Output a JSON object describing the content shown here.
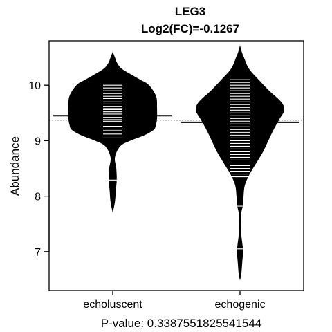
{
  "chart_data": {
    "type": "beanplot",
    "title": "LEG3",
    "subtitle": "Log2(FC)=-0.1267",
    "xlabel": "P-value: 0.3387551825541544",
    "ylabel": "Abundance",
    "categories": [
      "echoluscent",
      "echogenic"
    ],
    "ylim": [
      6.3,
      10.8
    ],
    "yticks": [
      7,
      8,
      9,
      10
    ],
    "overall_mean": 9.37,
    "groups": [
      {
        "name": "echoluscent",
        "mean": 9.45,
        "range": [
          7.7,
          10.6
        ],
        "density": [
          [
            7.7,
            0.0
          ],
          [
            7.9,
            0.05
          ],
          [
            8.1,
            0.07
          ],
          [
            8.3,
            0.09
          ],
          [
            8.5,
            0.08
          ],
          [
            8.7,
            0.05
          ],
          [
            8.9,
            0.17
          ],
          [
            9.0,
            0.4
          ],
          [
            9.1,
            0.72
          ],
          [
            9.2,
            0.93
          ],
          [
            9.3,
            0.98
          ],
          [
            9.4,
            1.0
          ],
          [
            9.6,
            1.0
          ],
          [
            9.8,
            0.98
          ],
          [
            10.0,
            0.82
          ],
          [
            10.1,
            0.62
          ],
          [
            10.2,
            0.4
          ],
          [
            10.3,
            0.2
          ],
          [
            10.4,
            0.1
          ],
          [
            10.5,
            0.05
          ],
          [
            10.6,
            0.0
          ]
        ],
        "observations": [
          8.29,
          9.05,
          9.12,
          9.18,
          9.21,
          9.26,
          9.35,
          9.38,
          9.42,
          9.45,
          9.48,
          9.52,
          9.56,
          9.58,
          9.62,
          9.66,
          9.7,
          9.76,
          9.8,
          9.85,
          9.9,
          9.95,
          10.0
        ]
      },
      {
        "name": "echogenic",
        "mean": 9.33,
        "range": [
          6.48,
          10.72
        ],
        "density": [
          [
            6.48,
            0.0
          ],
          [
            6.6,
            0.03
          ],
          [
            6.8,
            0.05
          ],
          [
            7.0,
            0.07
          ],
          [
            7.1,
            0.06
          ],
          [
            7.3,
            0.03
          ],
          [
            7.5,
            0.02
          ],
          [
            7.7,
            0.03
          ],
          [
            7.85,
            0.07
          ],
          [
            8.0,
            0.08
          ],
          [
            8.2,
            0.11
          ],
          [
            8.4,
            0.22
          ],
          [
            8.6,
            0.37
          ],
          [
            8.8,
            0.52
          ],
          [
            9.0,
            0.64
          ],
          [
            9.2,
            0.76
          ],
          [
            9.4,
            0.9
          ],
          [
            9.55,
            1.0
          ],
          [
            9.7,
            0.93
          ],
          [
            9.9,
            0.66
          ],
          [
            10.1,
            0.42
          ],
          [
            10.3,
            0.2
          ],
          [
            10.5,
            0.09
          ],
          [
            10.6,
            0.04
          ],
          [
            10.72,
            0.0
          ]
        ],
        "observations": [
          7.05,
          7.82,
          8.35,
          8.4,
          8.45,
          8.5,
          8.55,
          8.6,
          8.65,
          8.7,
          8.75,
          8.8,
          8.85,
          8.9,
          8.95,
          9.0,
          9.05,
          9.1,
          9.15,
          9.2,
          9.25,
          9.3,
          9.35,
          9.4,
          9.45,
          9.5,
          9.55,
          9.6,
          9.65,
          9.7,
          9.75,
          9.8,
          9.85,
          9.9,
          9.95,
          10.0,
          10.05,
          10.1
        ]
      }
    ],
    "colors": {
      "bean": "#000000",
      "observation": "#ffffff",
      "background": "#ffffff"
    },
    "grid": false,
    "legend": "none"
  }
}
